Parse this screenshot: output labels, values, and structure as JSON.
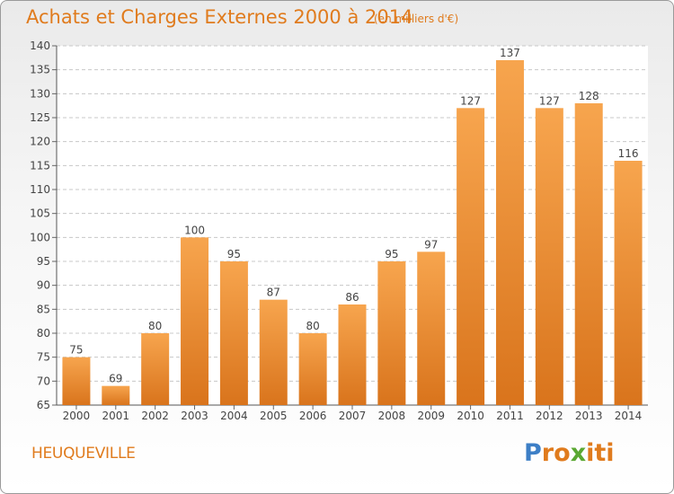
{
  "header": {
    "title": "Achats et Charges Externes 2000 à 2014",
    "subtitle": "(en milliers d'€)"
  },
  "footer": {
    "commune": "HEUQUEVILLE",
    "logo_letters": [
      "P",
      "r",
      "o",
      "x",
      "i",
      "t",
      "i"
    ],
    "logo_colors": [
      "#3d7fc6",
      "#e07b1d",
      "#e07b1d",
      "#5aa832",
      "#e07b1d",
      "#e07b1d",
      "#e07b1d"
    ]
  },
  "chart_data": {
    "type": "bar",
    "title": "Achats et Charges Externes 2000 à 2014",
    "categories": [
      "2000",
      "2001",
      "2002",
      "2003",
      "2004",
      "2005",
      "2006",
      "2007",
      "2008",
      "2009",
      "2010",
      "2011",
      "2012",
      "2013",
      "2014"
    ],
    "values": [
      75,
      69,
      80,
      100,
      95,
      87,
      80,
      86,
      95,
      97,
      127,
      137,
      127,
      128,
      116
    ],
    "ylim": [
      65,
      140
    ],
    "yticks": [
      65,
      70,
      75,
      80,
      85,
      90,
      95,
      100,
      105,
      110,
      115,
      120,
      125,
      130,
      135,
      140
    ],
    "grid": true,
    "bar_color_top": "#f7a54e",
    "bar_color_bottom": "#d9741c"
  }
}
